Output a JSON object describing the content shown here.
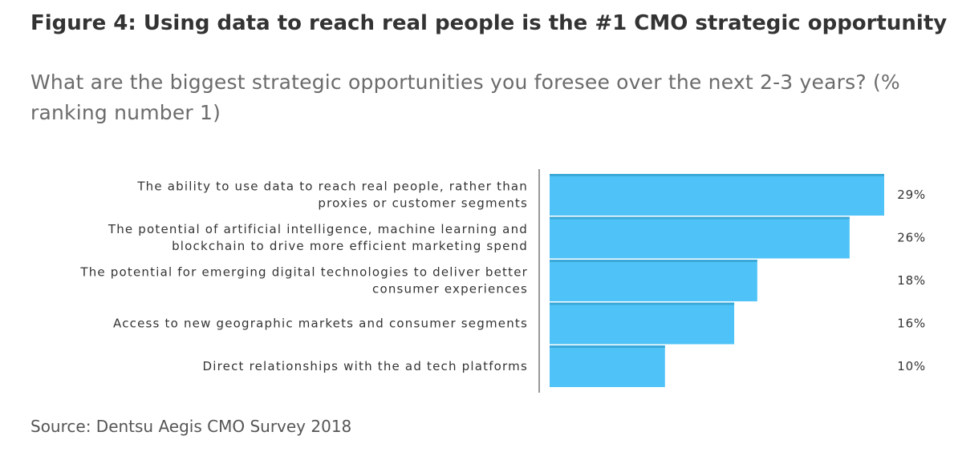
{
  "header": {
    "title": "Figure 4: Using data to reach real people is the #1 CMO strategic opportunity",
    "subtitle": "What are the biggest strategic opportunities you foresee over the next 2-3 years? (% ranking number 1)"
  },
  "footer": {
    "source": "Source: Dentsu Aegis CMO Survey 2018"
  },
  "colors": {
    "bar": "#4fc3f7",
    "bar_edge": "#3aa8d8",
    "axis": "#555555"
  },
  "chart_data": {
    "type": "bar",
    "orientation": "horizontal",
    "categories": [
      [
        "The ability to use data to reach real people, rather than",
        "proxies or customer segments"
      ],
      [
        "The potential of artificial intelligence, machine learning and",
        "blockchain to drive more efficient marketing spend"
      ],
      [
        "The potential for emerging digital technologies to deliver better",
        "consumer experiences"
      ],
      [
        "Access to new geographic markets and consumer segments"
      ],
      [
        "Direct relationships with the ad tech platforms"
      ]
    ],
    "values": [
      29,
      26,
      18,
      16,
      10
    ],
    "value_labels": [
      "29%",
      "26%",
      "18%",
      "16%",
      "10%"
    ],
    "unit": "%",
    "xlim": [
      0,
      29
    ],
    "grid": false,
    "legend": "none"
  }
}
